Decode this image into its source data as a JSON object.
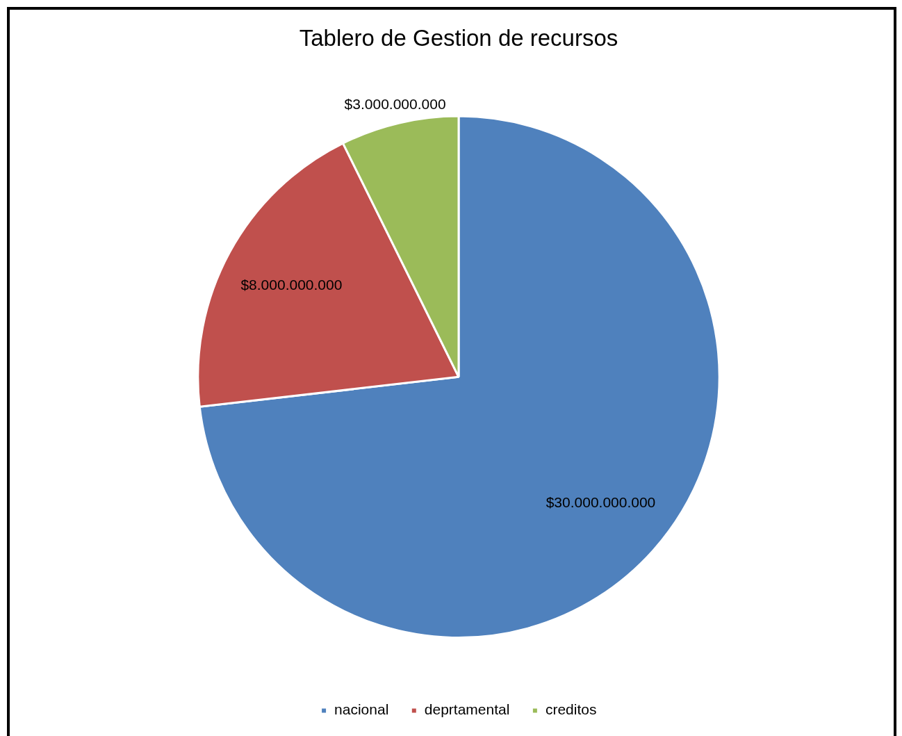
{
  "chart_data": {
    "type": "pie",
    "title": "Tablero de Gestion de recursos",
    "categories": [
      "nacional",
      "deprtamental",
      "creditos"
    ],
    "values": [
      30000000000,
      8000000000,
      3000000000
    ],
    "colors": [
      "#4f81bd",
      "#c0504d",
      "#9bbb59"
    ],
    "value_labels": [
      "$30.000.000.000",
      "$8.000.000.000",
      "$3.000.000.000"
    ],
    "legend": "bottom"
  }
}
